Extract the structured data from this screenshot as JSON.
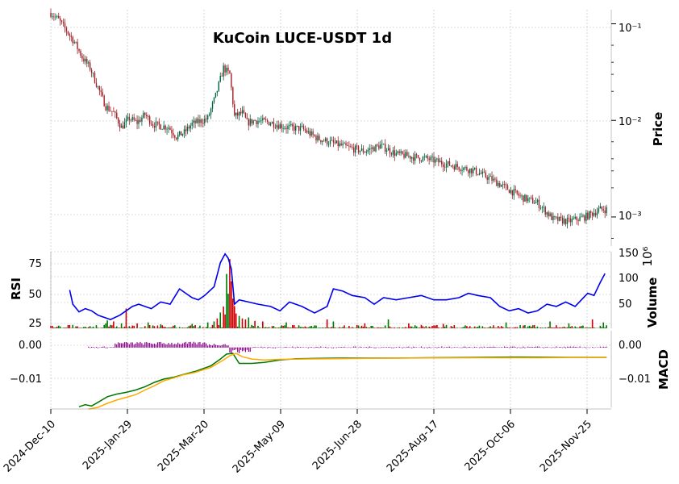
{
  "chart_data": {
    "type": "candlestick",
    "title": "KuCoin LUCE-USDT 1d",
    "x_dates": [
      "2024-Dec-10",
      "2025-Jan-29",
      "2025-Mar-20",
      "2025-May-09",
      "2025-Jun-28",
      "2025-Aug-17",
      "2025-Oct-06",
      "2025-Nov-25"
    ],
    "price_panel": {
      "ylabel": "Price",
      "scale": "log",
      "tick_labels": [
        "10⁻¹",
        "10⁻²",
        "10⁻³"
      ],
      "ylim": [
        0.0005,
        0.14
      ],
      "colors": {
        "up": "#006340",
        "down": "#a02128"
      },
      "close_path": [
        [
          0,
          0.13
        ],
        [
          5,
          0.11
        ],
        [
          10,
          0.085
        ],
        [
          15,
          0.065
        ],
        [
          20,
          0.045
        ],
        [
          25,
          0.035
        ],
        [
          30,
          0.022
        ],
        [
          35,
          0.014
        ],
        [
          40,
          0.012
        ],
        [
          45,
          0.0085
        ],
        [
          50,
          0.0105
        ],
        [
          55,
          0.0095
        ],
        [
          60,
          0.0115
        ],
        [
          65,
          0.0092
        ],
        [
          70,
          0.0088
        ],
        [
          75,
          0.0085
        ],
        [
          80,
          0.0068
        ],
        [
          85,
          0.0075
        ],
        [
          90,
          0.0092
        ],
        [
          95,
          0.0098
        ],
        [
          100,
          0.0105
        ],
        [
          105,
          0.018
        ],
        [
          110,
          0.035
        ],
        [
          114,
          0.03
        ],
        [
          117,
          0.011
        ],
        [
          122,
          0.012
        ],
        [
          125,
          0.0095
        ],
        [
          130,
          0.01
        ],
        [
          140,
          0.0095
        ],
        [
          150,
          0.0085
        ],
        [
          160,
          0.0082
        ],
        [
          170,
          0.0065
        ],
        [
          180,
          0.0058
        ],
        [
          190,
          0.0052
        ],
        [
          200,
          0.0048
        ],
        [
          210,
          0.0055
        ],
        [
          220,
          0.0045
        ],
        [
          230,
          0.0042
        ],
        [
          240,
          0.004
        ],
        [
          250,
          0.0036
        ],
        [
          260,
          0.0033
        ],
        [
          270,
          0.003
        ],
        [
          280,
          0.0025
        ],
        [
          290,
          0.002
        ],
        [
          300,
          0.0016
        ],
        [
          310,
          0.0014
        ],
        [
          320,
          0.00095
        ],
        [
          330,
          0.0009
        ],
        [
          340,
          0.001
        ],
        [
          350,
          0.0012
        ]
      ]
    },
    "rsi_panel": {
      "ylabel": "RSI",
      "yticks": [
        "25",
        "50",
        "75"
      ],
      "ylim": [
        20,
        90
      ],
      "line_color": "#0000ee",
      "values": [
        [
          12,
          55
        ],
        [
          14,
          42
        ],
        [
          18,
          35
        ],
        [
          22,
          38
        ],
        [
          26,
          36
        ],
        [
          30,
          32
        ],
        [
          34,
          30
        ],
        [
          38,
          28
        ],
        [
          44,
          32
        ],
        [
          48,
          36
        ],
        [
          52,
          40
        ],
        [
          56,
          42
        ],
        [
          60,
          40
        ],
        [
          64,
          38
        ],
        [
          70,
          44
        ],
        [
          76,
          42
        ],
        [
          82,
          56
        ],
        [
          86,
          52
        ],
        [
          90,
          48
        ],
        [
          94,
          46
        ],
        [
          98,
          50
        ],
        [
          104,
          58
        ],
        [
          108,
          80
        ],
        [
          111,
          88
        ],
        [
          113,
          84
        ],
        [
          115,
          74
        ],
        [
          117,
          42
        ],
        [
          120,
          46
        ],
        [
          126,
          44
        ],
        [
          132,
          42
        ],
        [
          140,
          40
        ],
        [
          146,
          36
        ],
        [
          152,
          44
        ],
        [
          160,
          40
        ],
        [
          168,
          34
        ],
        [
          176,
          40
        ],
        [
          180,
          56
        ],
        [
          186,
          54
        ],
        [
          192,
          50
        ],
        [
          200,
          48
        ],
        [
          206,
          42
        ],
        [
          212,
          48
        ],
        [
          220,
          46
        ],
        [
          228,
          48
        ],
        [
          236,
          50
        ],
        [
          244,
          46
        ],
        [
          252,
          46
        ],
        [
          260,
          48
        ],
        [
          266,
          52
        ],
        [
          272,
          50
        ],
        [
          280,
          48
        ],
        [
          286,
          40
        ],
        [
          292,
          36
        ],
        [
          298,
          38
        ],
        [
          304,
          34
        ],
        [
          310,
          36
        ],
        [
          316,
          42
        ],
        [
          322,
          40
        ],
        [
          328,
          44
        ],
        [
          334,
          40
        ],
        [
          338,
          46
        ],
        [
          342,
          52
        ],
        [
          346,
          50
        ],
        [
          350,
          62
        ],
        [
          353,
          70
        ]
      ]
    },
    "volume_panel": {
      "ylabel": "Volume",
      "exponent_label": "10⁶",
      "yticks": [
        "50",
        "100",
        "150"
      ],
      "ylim": [
        0,
        155
      ]
    },
    "macd_panel": {
      "ylabel": "MACD",
      "yticks": [
        "0.00",
        "−0.01"
      ],
      "ylim": [
        -0.018,
        0.005
      ],
      "macd_color": "#007700",
      "signal_color": "#ffaa00",
      "hist_color": "#880088",
      "macd_line": [
        [
          18,
          -0.0178
        ],
        [
          22,
          -0.0172
        ],
        [
          26,
          -0.0176
        ],
        [
          30,
          -0.0165
        ],
        [
          36,
          -0.0148
        ],
        [
          42,
          -0.014
        ],
        [
          48,
          -0.0135
        ],
        [
          54,
          -0.0128
        ],
        [
          60,
          -0.0118
        ],
        [
          66,
          -0.0105
        ],
        [
          72,
          -0.0095
        ],
        [
          78,
          -0.009
        ],
        [
          84,
          -0.0082
        ],
        [
          92,
          -0.0072
        ],
        [
          102,
          -0.0055
        ],
        [
          108,
          -0.0035
        ],
        [
          112,
          -0.002
        ],
        [
          116,
          -0.0018
        ],
        [
          120,
          -0.0048
        ],
        [
          128,
          -0.0048
        ],
        [
          136,
          -0.0045
        ],
        [
          146,
          -0.0038
        ],
        [
          156,
          -0.0034
        ],
        [
          170,
          -0.0033
        ],
        [
          186,
          -0.0032
        ],
        [
          200,
          -0.0032
        ],
        [
          220,
          -0.0032
        ],
        [
          240,
          -0.0031
        ],
        [
          270,
          -0.003
        ],
        [
          300,
          -0.0029
        ],
        [
          330,
          -0.003
        ],
        [
          354,
          -0.003
        ]
      ],
      "signal_line": [
        [
          24,
          -0.0185
        ],
        [
          30,
          -0.018
        ],
        [
          36,
          -0.0168
        ],
        [
          42,
          -0.0158
        ],
        [
          48,
          -0.015
        ],
        [
          54,
          -0.0142
        ],
        [
          60,
          -0.0128
        ],
        [
          66,
          -0.0115
        ],
        [
          72,
          -0.01
        ],
        [
          78,
          -0.0092
        ],
        [
          84,
          -0.0083
        ],
        [
          92,
          -0.0075
        ],
        [
          102,
          -0.006
        ],
        [
          110,
          -0.0038
        ],
        [
          114,
          -0.0025
        ],
        [
          118,
          -0.0018
        ],
        [
          122,
          -0.0028
        ],
        [
          128,
          -0.0035
        ],
        [
          136,
          -0.0038
        ],
        [
          146,
          -0.0036
        ],
        [
          160,
          -0.0035
        ],
        [
          180,
          -0.0034
        ],
        [
          200,
          -0.0033
        ],
        [
          230,
          -0.0032
        ],
        [
          270,
          -0.0031
        ],
        [
          310,
          -0.0031
        ],
        [
          354,
          -0.003
        ]
      ]
    }
  }
}
